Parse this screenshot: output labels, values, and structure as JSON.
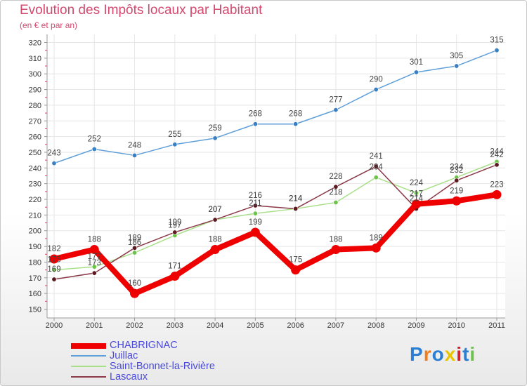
{
  "chart_data": {
    "type": "line",
    "title": "Evolution des Impôts locaux par Habitant",
    "subtitle": "(en € et par an)",
    "x": [
      "2000",
      "2001",
      "2002",
      "2003",
      "2004",
      "2005",
      "2006",
      "2007",
      "2008",
      "2009",
      "2010",
      "2011"
    ],
    "yticks": [
      "150",
      "160",
      "170",
      "180",
      "190",
      "200",
      "210",
      "220",
      "230",
      "240",
      "250",
      "260",
      "270",
      "280",
      "290",
      "300",
      "310",
      "320"
    ],
    "ylim": [
      150,
      320
    ],
    "grid": true,
    "legend_position": "bottom-left",
    "series": [
      {
        "name": "Juillac",
        "color": "#5f9fd8",
        "marker": "#3a7fc2",
        "values": [
          243,
          252,
          248,
          255,
          259,
          268,
          268,
          277,
          290,
          301,
          305,
          315
        ],
        "labels": [
          "243",
          "252",
          "248",
          "255",
          "259",
          "268",
          "268",
          "277",
          "290",
          "301",
          "305",
          "315"
        ]
      },
      {
        "name": "Saint-Bonnet-la-Rivière",
        "color": "#a8e08a",
        "marker": "#6cc34a",
        "values": [
          175,
          177,
          186,
          197,
          207,
          211,
          214,
          218,
          234,
          224,
          234,
          244
        ],
        "labels": [
          "175",
          "177",
          "186",
          "197",
          "207",
          "211",
          "214",
          "218",
          "234",
          "224",
          "234",
          "244"
        ]
      },
      {
        "name": "Lascaux",
        "color": "#8b3a4a",
        "marker": "#5a1a20",
        "values": [
          169,
          173,
          189,
          199,
          207,
          216,
          214,
          228,
          241,
          214,
          232,
          242
        ],
        "labels": [
          "169",
          "173",
          "189",
          "199",
          "207",
          "216",
          "214",
          "228",
          "241",
          "214",
          "232",
          "242"
        ]
      },
      {
        "name": "CHABRIGNAC",
        "color": "#ee0000",
        "marker": "#ee0000",
        "values": [
          182,
          188,
          160,
          171,
          188,
          199,
          175,
          188,
          189,
          217,
          219,
          223
        ],
        "labels": [
          "182",
          "188",
          "160",
          "171",
          "188",
          "199",
          "175",
          "188",
          "189",
          "217",
          "219",
          "223"
        ]
      }
    ]
  },
  "legend": [
    {
      "label": "CHABRIGNAC",
      "color": "#ee0000"
    },
    {
      "label": "Juillac",
      "color": "#5f9fd8"
    },
    {
      "label": "Saint-Bonnet-la-Rivière",
      "color": "#a8e08a"
    },
    {
      "label": "Lascaux",
      "color": "#8b3a4a"
    }
  ],
  "logo": {
    "text": "Proxiti",
    "letters": [
      "P",
      "r",
      "o",
      "x",
      "i",
      "t",
      "i"
    ],
    "colors": [
      "#2a7fd4",
      "#f07d1e",
      "#2a7fd4",
      "#e8c400",
      "#d02030",
      "#2a7fd4",
      "#6cc34a"
    ]
  }
}
